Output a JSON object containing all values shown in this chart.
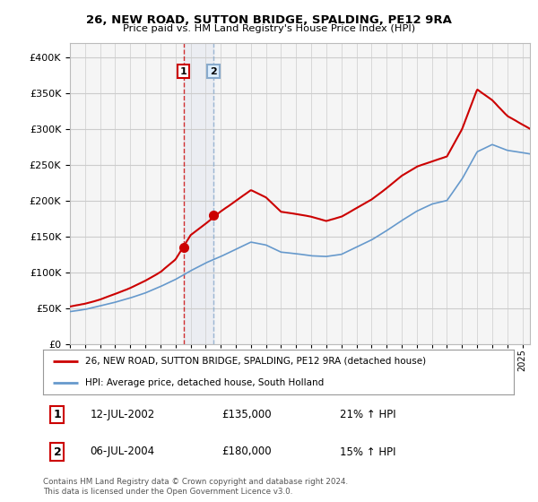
{
  "title": "26, NEW ROAD, SUTTON BRIDGE, SPALDING, PE12 9RA",
  "subtitle": "Price paid vs. HM Land Registry's House Price Index (HPI)",
  "yticks": [
    0,
    50000,
    100000,
    150000,
    200000,
    250000,
    300000,
    350000,
    400000
  ],
  "ylim": [
    0,
    420000
  ],
  "xlim_start": 1995.0,
  "xlim_end": 2025.5,
  "transaction1": {
    "date": 2002.54,
    "price": 135000,
    "label": "1",
    "text": "12-JUL-2002",
    "amount": "£135,000",
    "hpi": "21% ↑ HPI"
  },
  "transaction2": {
    "date": 2004.51,
    "price": 180000,
    "label": "2",
    "text": "06-JUL-2004",
    "amount": "£180,000",
    "hpi": "15% ↑ HPI"
  },
  "legend_line1": "26, NEW ROAD, SUTTON BRIDGE, SPALDING, PE12 9RA (detached house)",
  "legend_line2": "HPI: Average price, detached house, South Holland",
  "footer": "Contains HM Land Registry data © Crown copyright and database right 2024.\nThis data is licensed under the Open Government Licence v3.0.",
  "line_color_red": "#cc0000",
  "line_color_blue": "#6699cc",
  "grid_color": "#cccccc",
  "background_color": "#ffffff",
  "plot_bg_color": "#f5f5f5",
  "hpi_t_base": [
    1995,
    1996,
    1997,
    1998,
    1999,
    2000,
    2001,
    2002,
    2003,
    2004,
    2005,
    2006,
    2007,
    2008,
    2009,
    2010,
    2011,
    2012,
    2013,
    2014,
    2015,
    2016,
    2017,
    2018,
    2019,
    2020,
    2021,
    2022,
    2023,
    2024,
    2025.5
  ],
  "hpi_y_base": [
    45000,
    48000,
    53000,
    58000,
    64000,
    71000,
    80000,
    90000,
    102000,
    113000,
    122000,
    132000,
    142000,
    138000,
    128000,
    126000,
    123000,
    122000,
    125000,
    135000,
    145000,
    158000,
    172000,
    185000,
    195000,
    200000,
    230000,
    268000,
    278000,
    270000,
    265000
  ],
  "prop_t_base": [
    1995,
    1996,
    1997,
    1998,
    1999,
    2000,
    2001,
    2002,
    2003,
    2004,
    2005,
    2006,
    2007,
    2008,
    2009,
    2010,
    2011,
    2012,
    2013,
    2014,
    2015,
    2016,
    2017,
    2018,
    2019,
    2020,
    2021,
    2022,
    2023,
    2024,
    2025.5
  ],
  "prop_y_base": [
    52000,
    56000,
    62000,
    70000,
    78000,
    88000,
    100000,
    118000,
    152000,
    168000,
    185000,
    200000,
    215000,
    205000,
    185000,
    182000,
    178000,
    172000,
    178000,
    190000,
    202000,
    218000,
    235000,
    248000,
    255000,
    262000,
    300000,
    355000,
    340000,
    318000,
    300000
  ]
}
